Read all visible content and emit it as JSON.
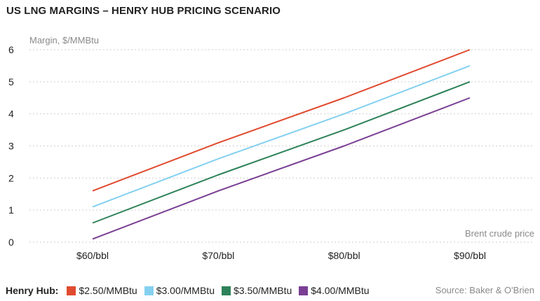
{
  "title": "US LNG MARGINS – HENRY HUB PRICING SCENARIO",
  "legend_title": "Henry Hub:",
  "source": "Source: Baker & O'Brien",
  "chart_data": {
    "type": "line",
    "ylabel": "Margin, $/MMBtu",
    "xlabel": "Brent crude price",
    "categories": [
      "$60/bbl",
      "$70/bbl",
      "$80/bbl",
      "$90/bbl"
    ],
    "x": [
      60,
      70,
      80,
      90
    ],
    "ylim": [
      0,
      6
    ],
    "yticks": [
      0,
      1,
      2,
      3,
      4,
      5,
      6
    ],
    "grid": true,
    "legend_position": "bottom",
    "series": [
      {
        "name": "$2.50/MMBtu",
        "color": "#e04a2f",
        "values": [
          1.6,
          3.1,
          4.5,
          6.0
        ]
      },
      {
        "name": "$3.00/MMBtu",
        "color": "#84d0f0",
        "values": [
          1.1,
          2.6,
          4.0,
          5.5
        ]
      },
      {
        "name": "$3.50/MMBtu",
        "color": "#2e8259",
        "values": [
          0.6,
          2.1,
          3.5,
          5.0
        ]
      },
      {
        "name": "$4.00/MMBtu",
        "color": "#7a3f94",
        "values": [
          0.1,
          1.6,
          3.0,
          4.5
        ]
      }
    ]
  }
}
